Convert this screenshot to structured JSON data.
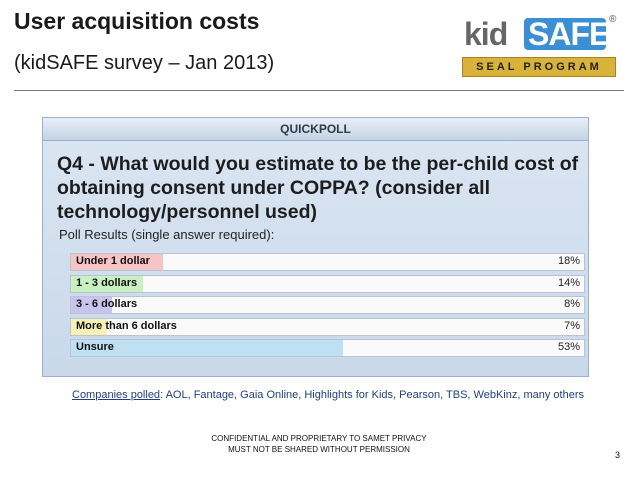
{
  "slide": {
    "title": "User acquisition costs",
    "subtitle": "(kidSAFE survey – Jan 2013)",
    "page_number": "3"
  },
  "logo": {
    "kid": "kid",
    "safe": "SAFE",
    "reg": "®",
    "band": "SEAL PROGRAM"
  },
  "poll": {
    "header": "QUICKPOLL",
    "question": "Q4 - What would you estimate to be the per-child cost of obtaining consent under COPPA? (consider all technology/personnel used)",
    "results_label": "Poll Results (single answer required):"
  },
  "chart_data": {
    "type": "bar",
    "title": "Q4 - What would you estimate to be the per-child cost of obtaining consent under COPPA? (consider all technology/personnel used)",
    "categories": [
      "Under 1 dollar",
      "1 - 3 dollars",
      "3 - 6 dollars",
      "More than 6 dollars",
      "Unsure"
    ],
    "values": [
      18,
      14,
      8,
      7,
      53
    ],
    "value_labels": [
      "18%",
      "14%",
      "8%",
      "7%",
      "53%"
    ],
    "unit": "%",
    "colors": [
      "#f6c4c4",
      "#c8f0c0",
      "#c9c3ee",
      "#f7f2b4",
      "#bfe0f2"
    ],
    "orientation": "horizontal",
    "xlim": [
      0,
      100
    ]
  },
  "companies": {
    "label": "Companies polled",
    "text": ": AOL, Fantage, Gaia Online, Highlights for Kids, Pearson, TBS, WebKinz, many others"
  },
  "footer": {
    "line1": "CONFIDENTIAL AND PROPRIETARY TO SAMET PRIVACY",
    "line2": "MUST NOT BE SHARED WITHOUT PERMISSION"
  }
}
